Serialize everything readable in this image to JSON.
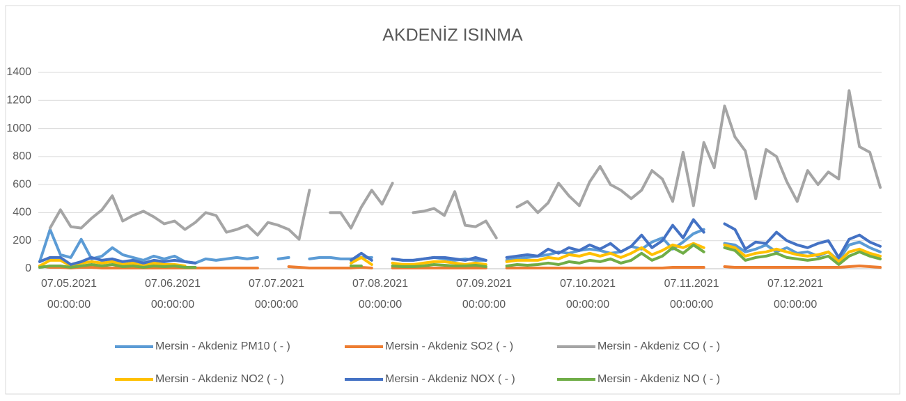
{
  "chart_data": {
    "type": "line",
    "title": "AKDENİZ ISINMA",
    "categories": [
      "07.05.2021 00:00:00",
      null,
      null,
      null,
      null,
      null,
      null,
      null,
      null,
      null,
      "07.06.2021 00:00:00",
      null,
      null,
      null,
      null,
      null,
      null,
      null,
      null,
      null,
      "07.07.2021 00:00:00",
      null,
      null,
      null,
      null,
      null,
      null,
      null,
      null,
      null,
      "07.08.2021 00:00:00",
      null,
      null,
      null,
      null,
      null,
      null,
      null,
      null,
      null,
      "07.09.2021 00:00:00",
      null,
      null,
      null,
      null,
      null,
      null,
      null,
      null,
      null,
      "07.10.2021 00:00:00",
      null,
      null,
      null,
      null,
      null,
      null,
      null,
      null,
      null,
      "07.11.2021 00:00:00",
      null,
      null,
      null,
      null,
      null,
      null,
      null,
      null,
      null,
      "07.12.2021 00:00:00",
      null,
      null,
      null,
      null,
      null,
      null,
      null,
      null,
      null,
      null,
      null
    ],
    "series": [
      {
        "name": "Mersin - Akdeniz PM10 ( - )",
        "color": "#5b9bd5",
        "values": [
          50,
          280,
          100,
          80,
          210,
          70,
          90,
          150,
          100,
          80,
          60,
          90,
          70,
          90,
          50,
          40,
          70,
          60,
          70,
          80,
          70,
          80,
          null,
          70,
          80,
          null,
          70,
          80,
          80,
          70,
          70,
          80,
          80,
          null,
          70,
          60,
          60,
          70,
          80,
          70,
          60,
          70,
          60,
          60,
          null,
          60,
          70,
          80,
          90,
          100,
          120,
          110,
          130,
          140,
          130,
          110,
          120,
          160,
          140,
          190,
          220,
          140,
          190,
          250,
          280,
          null,
          180,
          170,
          120,
          140,
          170,
          120,
          150,
          110,
          120,
          90,
          120,
          60,
          170,
          190,
          150,
          120
        ]
      },
      {
        "name": "Mersin - Akdeniz SO2 ( - )",
        "color": "#ed7d31",
        "values": [
          20,
          10,
          10,
          5,
          10,
          10,
          5,
          5,
          5,
          5,
          5,
          5,
          5,
          5,
          5,
          5,
          5,
          5,
          5,
          5,
          5,
          5,
          null,
          null,
          15,
          10,
          5,
          5,
          5,
          5,
          5,
          10,
          5,
          null,
          5,
          5,
          5,
          5,
          5,
          5,
          5,
          5,
          5,
          5,
          null,
          5,
          5,
          5,
          5,
          5,
          5,
          5,
          5,
          5,
          5,
          5,
          5,
          5,
          5,
          5,
          5,
          10,
          10,
          10,
          10,
          null,
          15,
          10,
          10,
          10,
          10,
          10,
          10,
          10,
          10,
          10,
          10,
          10,
          15,
          20,
          15,
          10
        ]
      },
      {
        "name": "Mersin - Akdeniz CO ( - )",
        "color": "#a5a5a5",
        "values": [
          null,
          290,
          420,
          300,
          290,
          360,
          420,
          520,
          340,
          380,
          410,
          370,
          320,
          340,
          280,
          330,
          400,
          380,
          260,
          280,
          310,
          240,
          330,
          310,
          280,
          210,
          560,
          null,
          400,
          400,
          290,
          440,
          560,
          460,
          610,
          null,
          400,
          410,
          430,
          380,
          550,
          310,
          300,
          340,
          220,
          null,
          440,
          480,
          400,
          470,
          610,
          520,
          450,
          620,
          730,
          600,
          560,
          500,
          560,
          700,
          640,
          480,
          830,
          450,
          900,
          720,
          1160,
          940,
          840,
          500,
          850,
          800,
          620,
          480,
          700,
          600,
          690,
          640,
          1270,
          870,
          830,
          580
        ]
      },
      {
        "name": "Mersin - Akdeniz NO2 ( - )",
        "color": "#ffc000",
        "values": [
          20,
          60,
          60,
          20,
          40,
          50,
          40,
          50,
          30,
          40,
          20,
          40,
          30,
          30,
          20,
          null,
          null,
          null,
          null,
          null,
          null,
          null,
          null,
          null,
          null,
          null,
          null,
          null,
          null,
          null,
          40,
          80,
          30,
          null,
          40,
          30,
          30,
          40,
          50,
          50,
          40,
          30,
          40,
          30,
          null,
          50,
          60,
          60,
          60,
          80,
          70,
          100,
          90,
          110,
          90,
          110,
          80,
          110,
          150,
          100,
          130,
          170,
          150,
          180,
          150,
          null,
          170,
          150,
          90,
          110,
          120,
          140,
          120,
          100,
          90,
          100,
          120,
          50,
          120,
          140,
          110,
          90
        ]
      },
      {
        "name": "Mersin - Akdeniz NOX ( - )",
        "color": "#4472c4",
        "values": [
          50,
          80,
          80,
          30,
          50,
          80,
          60,
          70,
          50,
          60,
          40,
          60,
          50,
          60,
          50,
          40,
          null,
          null,
          null,
          null,
          null,
          null,
          null,
          null,
          null,
          null,
          null,
          null,
          null,
          null,
          60,
          110,
          60,
          null,
          70,
          60,
          60,
          70,
          80,
          80,
          70,
          60,
          80,
          60,
          null,
          80,
          90,
          100,
          90,
          140,
          110,
          150,
          130,
          170,
          140,
          180,
          120,
          160,
          240,
          150,
          200,
          310,
          220,
          350,
          260,
          null,
          320,
          280,
          140,
          190,
          180,
          260,
          200,
          170,
          150,
          180,
          200,
          80,
          210,
          240,
          190,
          160
        ]
      },
      {
        "name": "Mersin - Akdeniz NO ( - )",
        "color": "#70ad47",
        "values": [
          10,
          20,
          20,
          10,
          20,
          30,
          20,
          30,
          15,
          20,
          10,
          20,
          15,
          20,
          10,
          10,
          null,
          null,
          null,
          null,
          null,
          null,
          null,
          null,
          null,
          null,
          null,
          null,
          null,
          null,
          20,
          20,
          null,
          null,
          20,
          15,
          15,
          20,
          30,
          25,
          20,
          20,
          25,
          15,
          null,
          20,
          30,
          25,
          30,
          40,
          30,
          50,
          40,
          60,
          50,
          70,
          40,
          60,
          110,
          60,
          90,
          150,
          110,
          170,
          120,
          null,
          150,
          130,
          60,
          80,
          90,
          110,
          80,
          70,
          60,
          70,
          90,
          30,
          90,
          120,
          90,
          70
        ]
      }
    ],
    "ylim": [
      0,
      1400
    ],
    "yticks": [
      0,
      200,
      400,
      600,
      800,
      1000,
      1200,
      1400
    ],
    "grid": true,
    "legend": "bottom"
  }
}
